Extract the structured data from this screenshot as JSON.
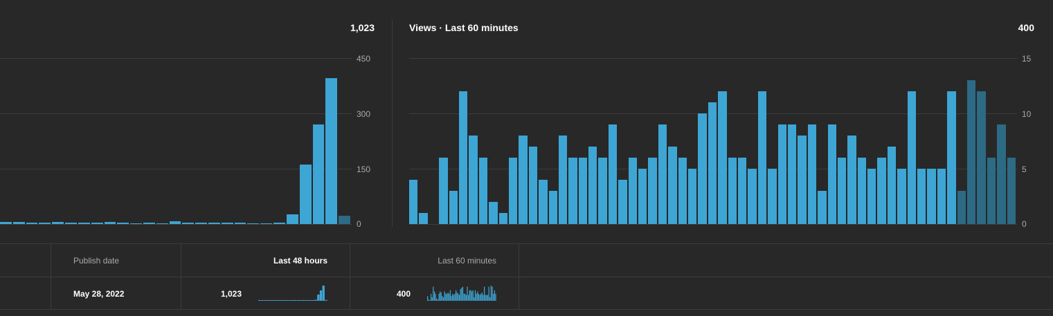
{
  "left_chart": {
    "total": "1,023",
    "y_ticks": [
      "450",
      "300",
      "150",
      "0"
    ]
  },
  "right_chart": {
    "title": "Views · Last 60 minutes",
    "total": "400",
    "y_ticks": [
      "15",
      "10",
      "5",
      "0"
    ]
  },
  "table": {
    "headers": {
      "publish_date": "Publish date",
      "last_48_hours": "Last 48 hours",
      "last_60_minutes": "Last 60 minutes"
    },
    "row": {
      "publish_date": "May 28, 2022",
      "last_48_hours_value": "1,023",
      "last_60_minutes_value": "400"
    }
  },
  "colors": {
    "bar": "#3ea6d5",
    "bar_recent": "#2c6a85",
    "background": "#282828"
  },
  "chart_data": [
    {
      "type": "bar",
      "title": "",
      "ylim": [
        0,
        450
      ],
      "yticks": [
        0,
        150,
        300,
        450
      ],
      "grid": true,
      "values": [
        5,
        5,
        4,
        4,
        5,
        4,
        4,
        3,
        5,
        4,
        2,
        4,
        2,
        7,
        4,
        4,
        4,
        4,
        3,
        2,
        2,
        4,
        26,
        162,
        270,
        396,
        22
      ],
      "highlight_last": 1
    },
    {
      "type": "bar",
      "title": "Views · Last 60 minutes",
      "ylim": [
        0,
        15
      ],
      "yticks": [
        0,
        5,
        10,
        15
      ],
      "grid": true,
      "values": [
        4,
        1,
        0,
        6,
        3,
        12,
        8,
        6,
        2,
        1,
        6,
        8,
        7,
        4,
        3,
        8,
        6,
        6,
        7,
        6,
        9,
        4,
        6,
        5,
        6,
        9,
        7,
        6,
        5,
        10,
        11,
        12,
        6,
        6,
        5,
        12,
        5,
        9,
        9,
        8,
        9,
        3,
        9,
        6,
        8,
        6,
        5,
        6,
        7,
        5,
        12,
        5,
        5,
        5,
        12,
        3,
        13,
        12,
        6,
        9,
        6
      ],
      "highlight_last": 6
    }
  ]
}
